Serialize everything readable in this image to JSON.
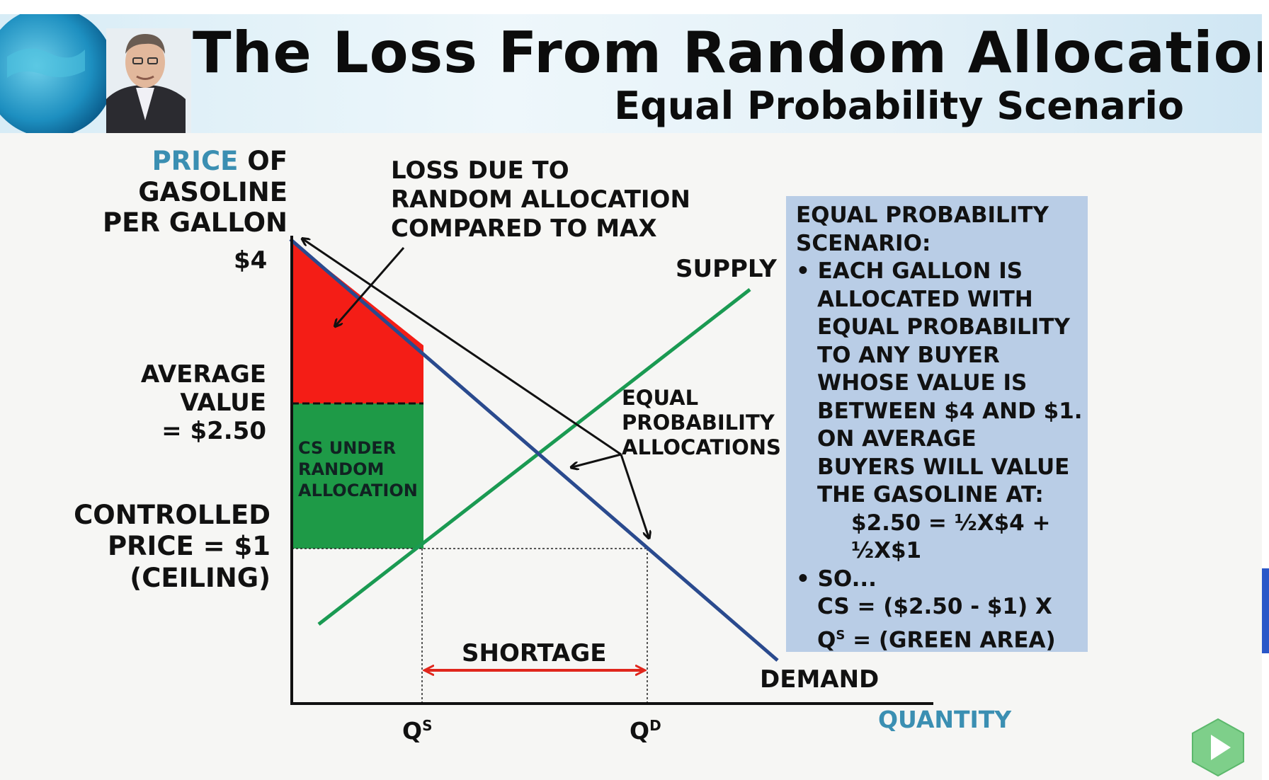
{
  "header": {
    "title": "The Loss From Random Allocation",
    "subtitle": "Equal Probability Scenario"
  },
  "diagram": {
    "y_axis_label": [
      "Price",
      " of",
      "Gasoline",
      "per Gallon"
    ],
    "x_axis_label": "Quantity",
    "price_top_label": "$4",
    "average_value_label": [
      "Average",
      "Value",
      "= $2.50"
    ],
    "controlled_price_label": [
      "Controlled",
      "Price = $1",
      "(Ceiling)"
    ],
    "loss_note": [
      "Loss due to",
      "random allocation",
      "compared to max"
    ],
    "supply_label": "Supply",
    "demand_label": "Demand",
    "equal_prob_label": [
      "Equal",
      "Probability",
      "Allocations"
    ],
    "cs_label": [
      "CS under",
      "random",
      "allocation"
    ],
    "shortage_label": "Shortage",
    "qs_label": "Q",
    "qs_sup": "S",
    "qd_label": "Q",
    "qd_sup": "D",
    "colors": {
      "loss_area": "#f41d16",
      "cs_area": "#1e9a47",
      "supply_line": "#1a9a52",
      "demand_line": "#2a4a8e",
      "shortage_arrow": "#e0261c",
      "info_box": "#b9cde6",
      "axis_accent": "#3b8fb2"
    }
  },
  "info_box": {
    "lines": [
      "Equal Probability",
      "Scenario:",
      "• Each gallon is",
      "allocated with",
      "equal probability",
      "to any buyer",
      "whose value is",
      "between $4 and $1.",
      "On average",
      "buyers will value",
      "the gasoline at:",
      "$2.50  =  ½x$4 +",
      "½x$1",
      "• So...",
      "CS = ($2.50 - $1) x",
      "Q",
      "s",
      " = (Green Area)"
    ]
  },
  "controls": {
    "play_icon": "play-icon"
  }
}
